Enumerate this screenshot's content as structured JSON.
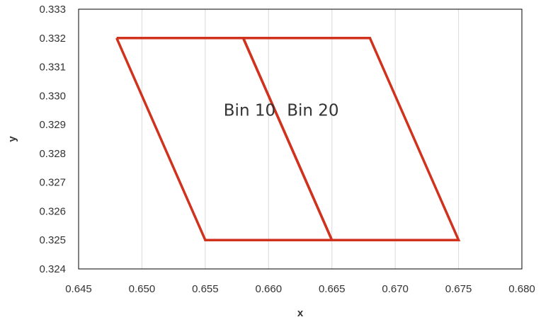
{
  "chart_data": {
    "type": "line",
    "title": "",
    "xlabel": "x",
    "ylabel": "y",
    "xlim": [
      0.645,
      0.68
    ],
    "ylim": [
      0.324,
      0.333
    ],
    "x_ticks": [
      "0.645",
      "0.650",
      "0.655",
      "0.660",
      "0.665",
      "0.670",
      "0.675",
      "0.680"
    ],
    "y_ticks": [
      "0.324",
      "0.325",
      "0.326",
      "0.327",
      "0.328",
      "0.329",
      "0.330",
      "0.331",
      "0.332",
      "0.333"
    ],
    "grid": "vertical",
    "legend": "none",
    "series": [
      {
        "label": "Bin 10",
        "color": "#d0321e",
        "points": [
          [
            0.648,
            0.332
          ],
          [
            0.658,
            0.332
          ],
          [
            0.665,
            0.325
          ],
          [
            0.655,
            0.325
          ],
          [
            0.648,
            0.332
          ]
        ]
      },
      {
        "label": "Bin 20",
        "color": "#d0321e",
        "points": [
          [
            0.658,
            0.332
          ],
          [
            0.668,
            0.332
          ],
          [
            0.675,
            0.325
          ],
          [
            0.665,
            0.325
          ],
          [
            0.658,
            0.332
          ]
        ]
      }
    ],
    "annotations": [
      {
        "text": "Bin 10",
        "x": 0.6585,
        "y": 0.3295
      },
      {
        "text": "Bin 20",
        "x": 0.6635,
        "y": 0.3295
      }
    ]
  }
}
